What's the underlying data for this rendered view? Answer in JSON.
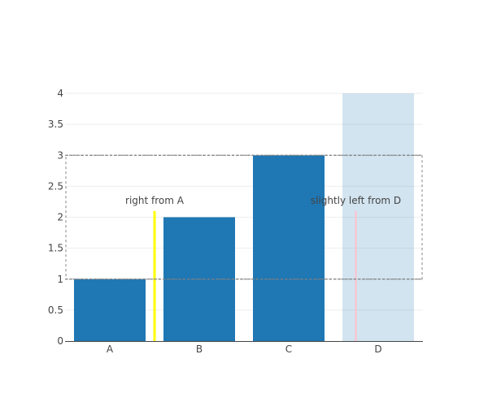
{
  "chart_data": {
    "type": "bar",
    "categories": [
      "A",
      "B",
      "C",
      "D"
    ],
    "series": [
      {
        "values": [
          1,
          2,
          3,
          null
        ]
      }
    ],
    "ylim": [
      0,
      4
    ],
    "yticks": [
      "0",
      "0.5",
      "1",
      "1.5",
      "2",
      "2.5",
      "3",
      "3.5",
      "4"
    ],
    "grid": true,
    "colors": {
      "bar": "#1f77b4",
      "highlight": "#1f77b4",
      "line_right_of_a": "#ffff00",
      "line_left_of_d": "#ffc0cb",
      "band": "#808080"
    },
    "shapes": {
      "highlight_category": "D",
      "highlight_y_range": [
        0,
        4
      ],
      "line_right_of_a": {
        "category_offset": 0.5,
        "category": "A",
        "y_range": [
          0,
          2.1
        ]
      },
      "line_left_of_d": {
        "category_offset": -0.25,
        "category": "D",
        "y_range": [
          0,
          2.1
        ]
      },
      "dashed_band_y_range": [
        1,
        3
      ]
    },
    "annotations": [
      {
        "text": "right from A",
        "category": "A",
        "category_offset": 0.5,
        "y": 2.1
      },
      {
        "text": "slightly left from D",
        "category": "D",
        "category_offset": -0.25,
        "y": 2.1
      }
    ]
  }
}
